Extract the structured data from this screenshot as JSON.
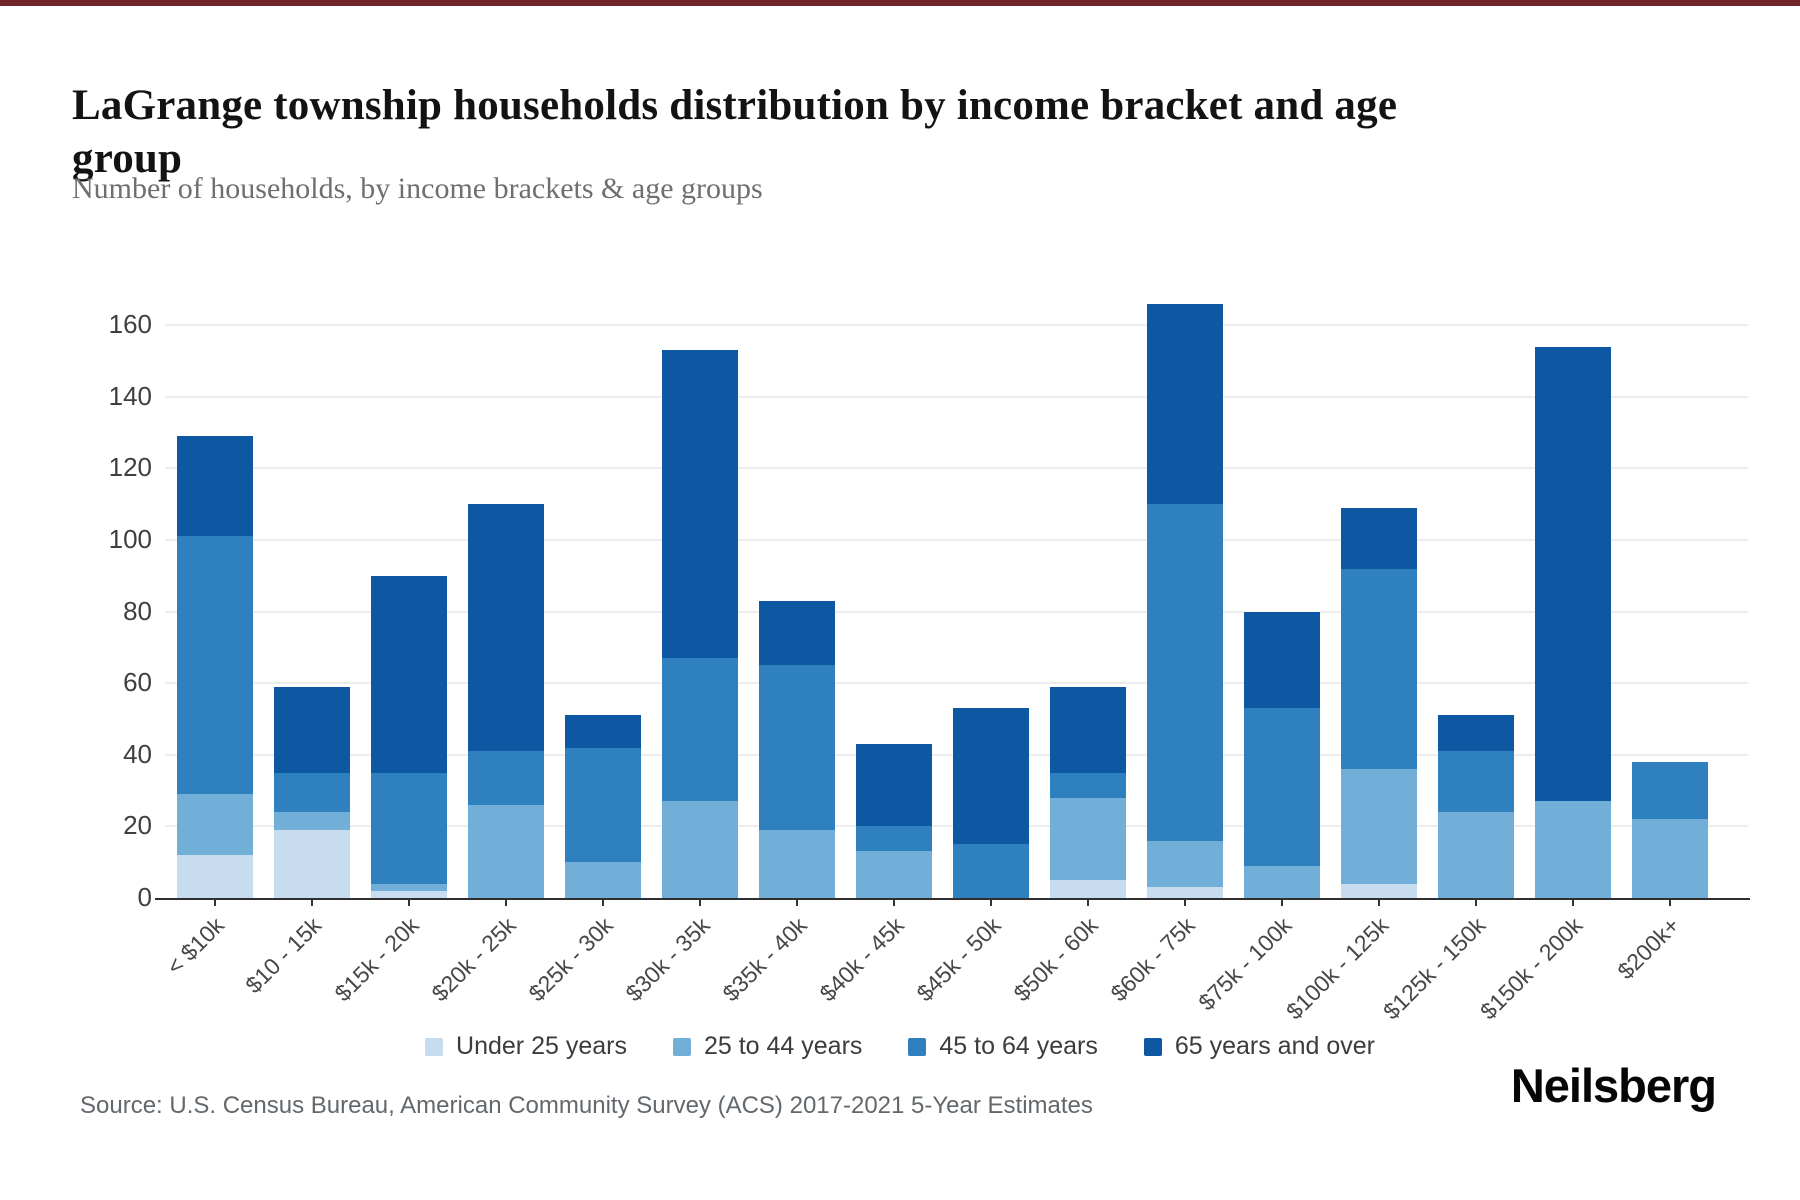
{
  "page": {
    "accent_color": "#702428",
    "background": "#ffffff"
  },
  "header": {
    "title": "LaGrange township households distribution by income bracket and age group",
    "subtitle": "Number of households, by income brackets & age groups"
  },
  "chart_data": {
    "type": "bar",
    "stacked": true,
    "title": "LaGrange township households distribution by income bracket and age group",
    "categories": [
      "< $10k",
      "$10 - 15k",
      "$15k - 20k",
      "$20k - 25k",
      "$25k - 30k",
      "$30k - 35k",
      "$35k - 40k",
      "$40k - 45k",
      "$45k - 50k",
      "$50k - 60k",
      "$60k - 75k",
      "$75k - 100k",
      "$100k - 125k",
      "$125k - 150k",
      "$150k - 200k",
      "$200k+"
    ],
    "series": [
      {
        "name": "Under 25 years",
        "color": "#c7dcee",
        "values": [
          12,
          19,
          2,
          0,
          0,
          0,
          0,
          0,
          0,
          5,
          3,
          0,
          4,
          0,
          0,
          0
        ]
      },
      {
        "name": "25 to 44 years",
        "color": "#72afd8",
        "values": [
          17,
          5,
          2,
          26,
          10,
          27,
          19,
          13,
          0,
          23,
          13,
          9,
          32,
          24,
          27,
          22
        ]
      },
      {
        "name": "45 to 64 years",
        "color": "#2f80be",
        "values": [
          72,
          11,
          31,
          15,
          32,
          40,
          46,
          7,
          15,
          7,
          94,
          44,
          56,
          17,
          0,
          16
        ]
      },
      {
        "name": "65 years and over",
        "color": "#0e57a3",
        "values": [
          28,
          24,
          55,
          69,
          9,
          86,
          18,
          23,
          38,
          24,
          56,
          27,
          17,
          10,
          127,
          0
        ]
      }
    ],
    "totals": [
      129,
      59,
      90,
      110,
      51,
      153,
      83,
      43,
      53,
      59,
      166,
      80,
      109,
      51,
      154,
      38
    ],
    "xlabel": "",
    "ylabel": "",
    "ylim": [
      0,
      160
    ],
    "yticks": [
      0,
      20,
      40,
      60,
      80,
      100,
      120,
      140,
      160
    ],
    "grid": true,
    "legend_position": "bottom"
  },
  "footer": {
    "source": "Source: U.S. Census Bureau, American Community Survey (ACS) 2017-2021 5-Year Estimates",
    "brand": "Neilsberg"
  }
}
